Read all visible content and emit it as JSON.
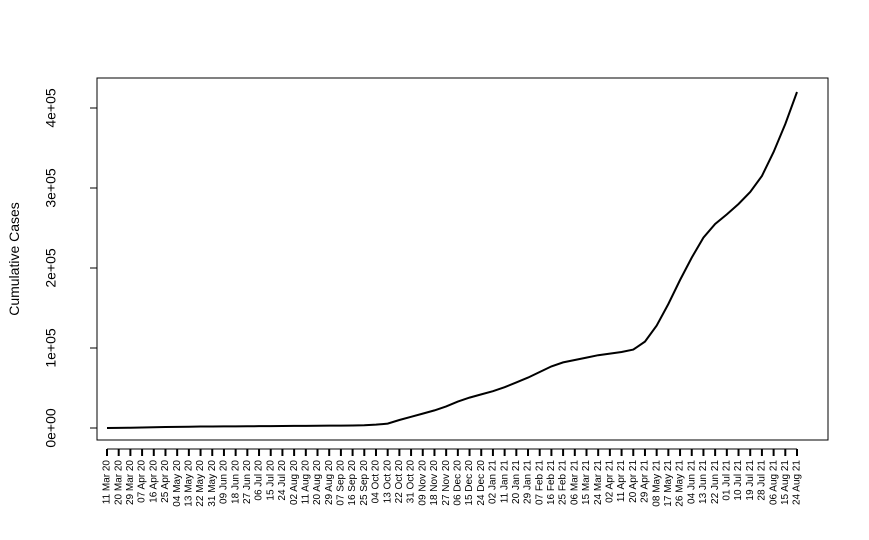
{
  "chart_data": {
    "type": "line",
    "y_label": "Cumulative Cases",
    "categories": [
      "11 Mar 20",
      "20 Mar 20",
      "29 Mar 20",
      "07 Apr 20",
      "16 Apr 20",
      "25 Apr 20",
      "04 May 20",
      "13 May 20",
      "22 May 20",
      "31 May 20",
      "09 Jun 20",
      "18 Jun 20",
      "27 Jun 20",
      "06 Jul 20",
      "15 Jul 20",
      "24 Jul 20",
      "02 Aug 20",
      "11 Aug 20",
      "20 Aug 20",
      "29 Aug 20",
      "07 Sep 20",
      "16 Sep 20",
      "25 Sep 20",
      "04 Oct 20",
      "13 Oct 20",
      "22 Oct 20",
      "31 Oct 20",
      "09 Nov 20",
      "18 Nov 20",
      "27 Nov 20",
      "06 Dec 20",
      "15 Dec 20",
      "24 Dec 20",
      "02 Jan 21",
      "11 Jan 21",
      "20 Jan 21",
      "29 Jan 21",
      "07 Feb 21",
      "16 Feb 21",
      "25 Feb 21",
      "06 Mar 21",
      "15 Mar 21",
      "24 Mar 21",
      "02 Apr 21",
      "11 Apr 21",
      "20 Apr 21",
      "29 Apr 21",
      "08 May 21",
      "17 May 21",
      "26 May 21",
      "04 Jun 21",
      "13 Jun 21",
      "22 Jun 21",
      "01 Jul 21",
      "10 Jul 21",
      "19 Jul 21",
      "28 Jul 21",
      "06 Aug 21",
      "15 Aug 21",
      "24 Aug 21"
    ],
    "values": [
      0,
      100,
      300,
      600,
      900,
      1200,
      1400,
      1600,
      1800,
      1900,
      2000,
      2100,
      2200,
      2300,
      2400,
      2500,
      2600,
      2700,
      2800,
      2900,
      3000,
      3200,
      3500,
      4200,
      5500,
      10000,
      14000,
      18000,
      22000,
      27000,
      33000,
      38000,
      42000,
      46000,
      51000,
      57000,
      63000,
      70000,
      77000,
      82000,
      85000,
      88000,
      91000,
      93000,
      95000,
      98000,
      108000,
      128000,
      155000,
      185000,
      213000,
      238000,
      255000,
      267000,
      280000,
      295000,
      315000,
      345000,
      380000,
      420000
    ],
    "color": "#000000",
    "ylim": [
      -15000,
      437500
    ],
    "yticks": [
      {
        "value": 0,
        "label": "0e+00"
      },
      {
        "value": 100000,
        "label": "1e+05"
      },
      {
        "value": 200000,
        "label": "2e+05"
      },
      {
        "value": 300000,
        "label": "3e+05"
      },
      {
        "value": 400000,
        "label": "4e+05"
      }
    ]
  }
}
